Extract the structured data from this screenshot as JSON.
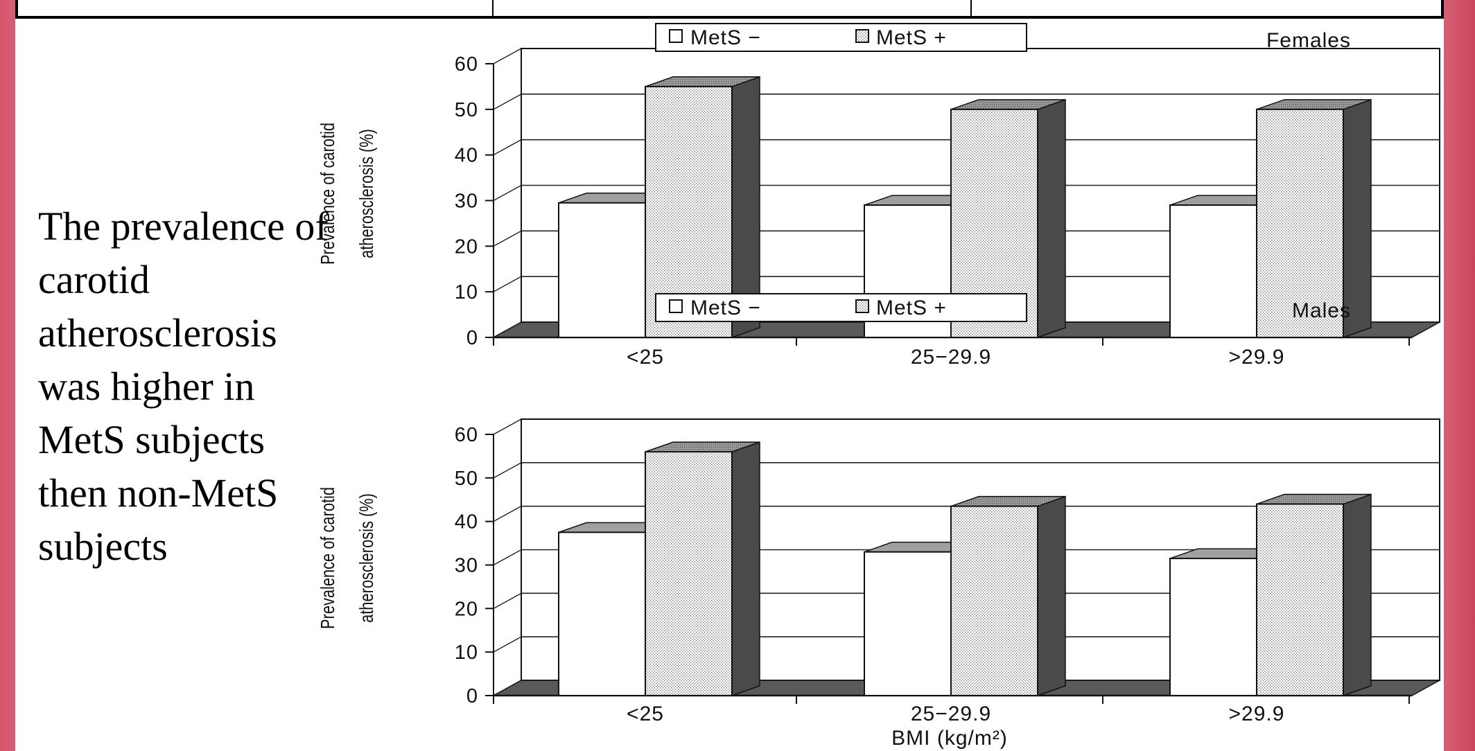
{
  "slide": {
    "caption": "The prevalence of carotid atherosclerosis was higher in MetS subjects then non-MetS subjects"
  },
  "colors": {
    "slide_border": "#d65f74",
    "bar_side": "#4a4a4a",
    "bar_top": "#a0a0a0",
    "floor": "#5a5a5a"
  },
  "chart_data": [
    {
      "type": "bar",
      "panel_label": "Females",
      "categories": [
        "<25",
        "25−29.9",
        ">29.9"
      ],
      "series": [
        {
          "name": "MetS −",
          "values": [
            29.5,
            29,
            29
          ]
        },
        {
          "name": "MetS +",
          "values": [
            55,
            50,
            50
          ]
        }
      ],
      "ylabel": [
        "Prevalence of carotid",
        "atherosclerosis (%)"
      ],
      "xlabel": "",
      "ylim": [
        0,
        60
      ],
      "yticks": [
        0,
        10,
        20,
        30,
        40,
        50,
        60
      ],
      "grid": true,
      "legend": "top-center",
      "style": "3d"
    },
    {
      "type": "bar",
      "panel_label": "Males",
      "categories": [
        "<25",
        "25−29.9",
        ">29.9"
      ],
      "series": [
        {
          "name": "MetS −",
          "values": [
            37.5,
            33,
            31.5
          ]
        },
        {
          "name": "MetS +",
          "values": [
            56,
            43.5,
            44
          ]
        }
      ],
      "ylabel": [
        "Prevalence of carotid",
        "atherosclerosis (%)"
      ],
      "xlabel": "BMI (kg/m²)",
      "ylim": [
        0,
        60
      ],
      "yticks": [
        0,
        10,
        20,
        30,
        40,
        50,
        60
      ],
      "grid": true,
      "legend": "top-center",
      "style": "3d"
    }
  ]
}
